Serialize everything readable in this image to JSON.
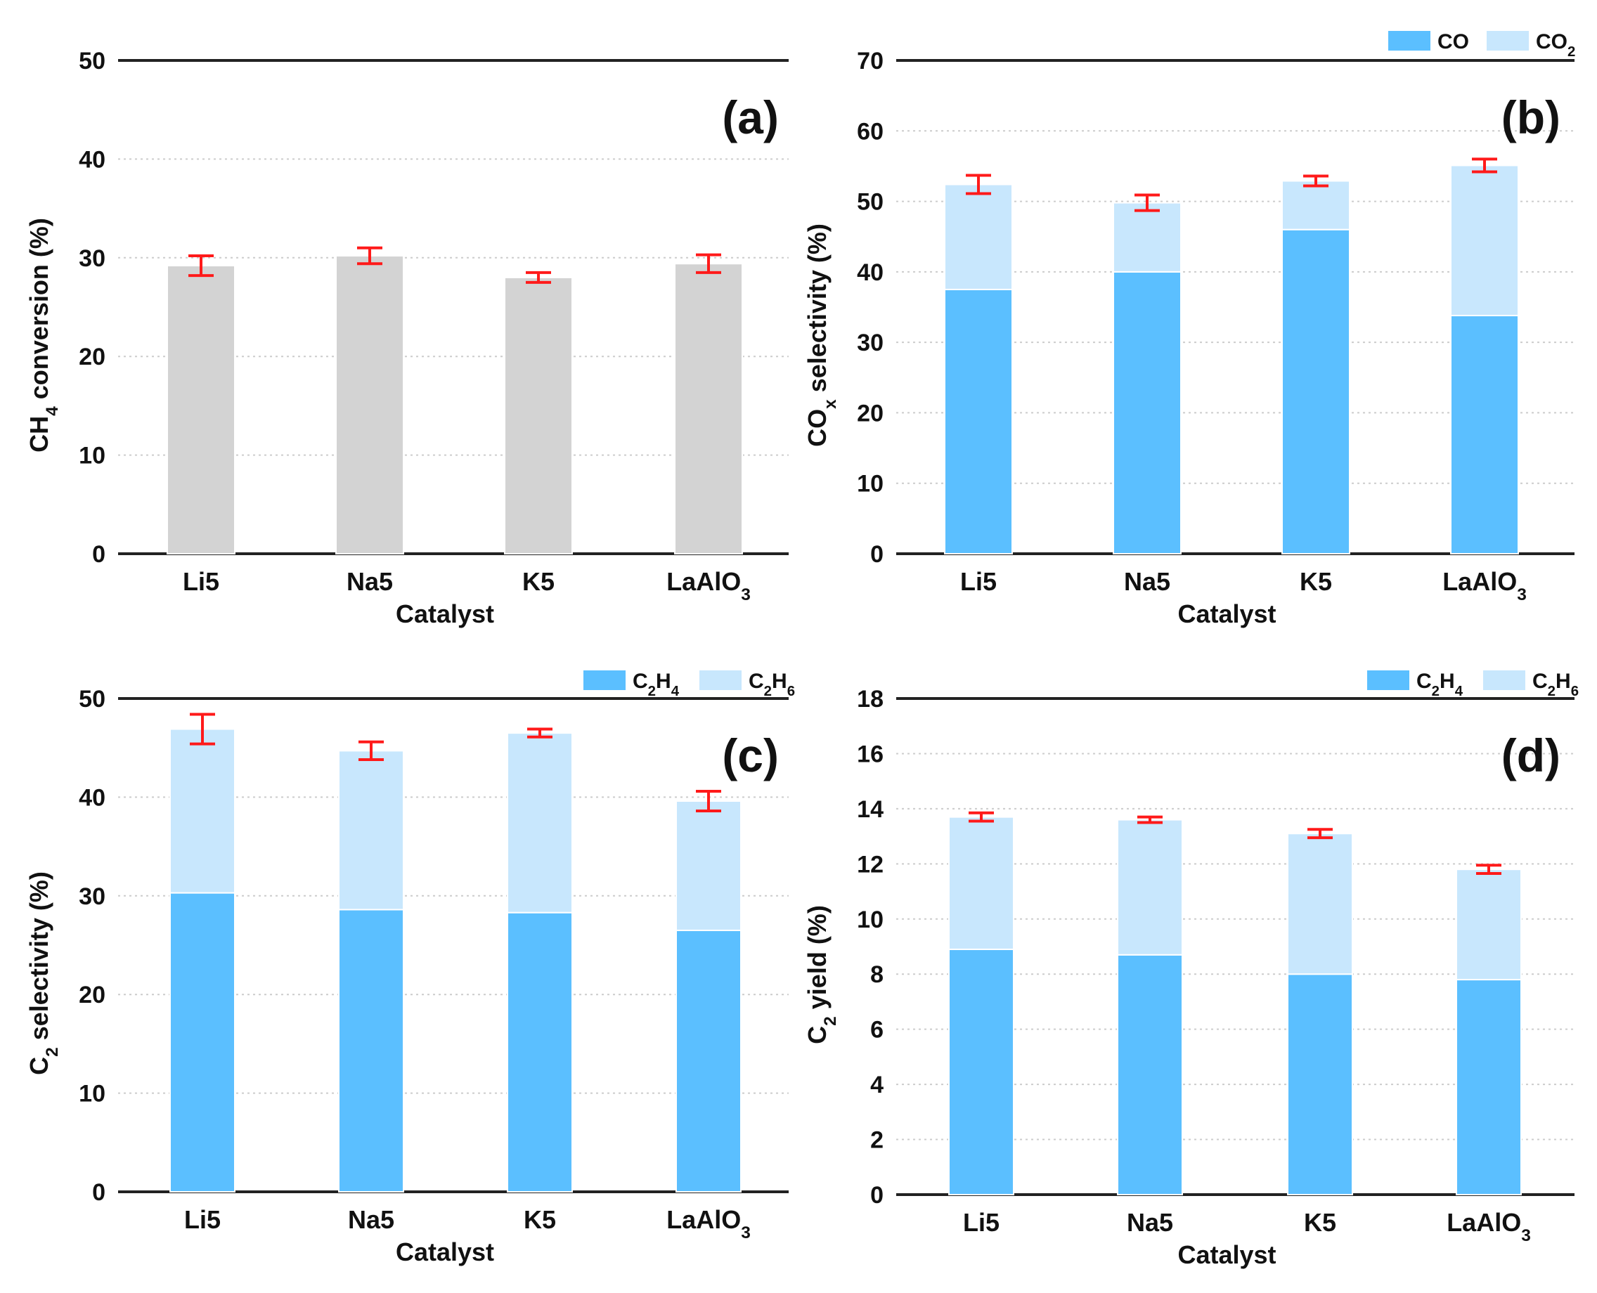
{
  "colors": {
    "primary": "#5bbfff",
    "secondary": "#c8e7fd",
    "gray": "#d3d3d3",
    "error": "#ff1a1a",
    "axis": "#222222",
    "grid": "#cccccc"
  },
  "chart_data": [
    {
      "id": "a",
      "type": "bar",
      "panel_label": "(a)",
      "categories": [
        "Li5",
        "Na5",
        "K5",
        "LaAlO3"
      ],
      "category_labels": [
        {
          "base": "Li5",
          "sub": ""
        },
        {
          "base": "Na5",
          "sub": ""
        },
        {
          "base": "K5",
          "sub": ""
        },
        {
          "base": "LaAlO",
          "sub": "3"
        }
      ],
      "xlabel": "Catalyst",
      "ylabel": {
        "base": "CH",
        "sub": "4",
        "rest": " conversion (%)"
      },
      "ylim": [
        0,
        50
      ],
      "yticks": [
        0,
        10,
        20,
        30,
        40,
        50
      ],
      "legend": [],
      "series": [
        {
          "name": "CH4 conversion",
          "color": "gray",
          "values": [
            29.2,
            30.2,
            28.0,
            29.4
          ]
        }
      ],
      "errors": [
        1.0,
        0.8,
        0.5,
        0.9
      ]
    },
    {
      "id": "b",
      "type": "bar",
      "stacked": true,
      "panel_label": "(b)",
      "categories": [
        "Li5",
        "Na5",
        "K5",
        "LaAlO3"
      ],
      "category_labels": [
        {
          "base": "Li5",
          "sub": ""
        },
        {
          "base": "Na5",
          "sub": ""
        },
        {
          "base": "K5",
          "sub": ""
        },
        {
          "base": "LaAlO",
          "sub": "3"
        }
      ],
      "xlabel": "Catalyst",
      "ylabel": {
        "base": "CO",
        "sub": "x",
        "rest": " selectivity (%)"
      },
      "ylim": [
        0,
        70
      ],
      "yticks": [
        0,
        10,
        20,
        30,
        40,
        50,
        60,
        70
      ],
      "legend": [
        {
          "base": "CO",
          "sub": "",
          "color": "primary"
        },
        {
          "base": "CO",
          "sub": "2",
          "color": "secondary"
        }
      ],
      "series": [
        {
          "name": "CO",
          "color": "primary",
          "values": [
            37.5,
            40.0,
            46.0,
            33.8
          ]
        },
        {
          "name": "CO2",
          "color": "secondary",
          "values": [
            14.9,
            9.8,
            6.9,
            21.3
          ]
        }
      ],
      "errors": [
        1.3,
        1.1,
        0.7,
        0.9
      ]
    },
    {
      "id": "c",
      "type": "bar",
      "stacked": true,
      "panel_label": "(c)",
      "categories": [
        "Li5",
        "Na5",
        "K5",
        "LaAlO3"
      ],
      "category_labels": [
        {
          "base": "Li5",
          "sub": ""
        },
        {
          "base": "Na5",
          "sub": ""
        },
        {
          "base": "K5",
          "sub": ""
        },
        {
          "base": "LaAlO",
          "sub": "3"
        }
      ],
      "xlabel": "Catalyst",
      "ylabel": {
        "base": "C",
        "sub": "2",
        "rest": " selectivity (%)"
      },
      "ylim": [
        0,
        50
      ],
      "yticks": [
        0,
        10,
        20,
        30,
        40,
        50
      ],
      "legend": [
        {
          "base": "C",
          "sub": "2",
          "base2": "H",
          "sub2": "4",
          "color": "primary"
        },
        {
          "base": "C",
          "sub": "2",
          "base2": "H",
          "sub2": "6",
          "color": "secondary"
        }
      ],
      "series": [
        {
          "name": "C2H4",
          "color": "primary",
          "values": [
            30.3,
            28.6,
            28.3,
            26.5
          ]
        },
        {
          "name": "C2H6",
          "color": "secondary",
          "values": [
            16.6,
            16.1,
            18.2,
            13.1
          ]
        }
      ],
      "errors": [
        1.5,
        0.9,
        0.4,
        1.0
      ]
    },
    {
      "id": "d",
      "type": "bar",
      "stacked": true,
      "panel_label": "(d)",
      "categories": [
        "Li5",
        "Na5",
        "K5",
        "LaAlO3"
      ],
      "category_labels": [
        {
          "base": "Li5",
          "sub": ""
        },
        {
          "base": "Na5",
          "sub": ""
        },
        {
          "base": "K5",
          "sub": ""
        },
        {
          "base": "LaAlO",
          "sub": "3"
        }
      ],
      "xlabel": "Catalyst",
      "ylabel": {
        "base": "C",
        "sub": "2",
        "rest": " yield (%)"
      },
      "ylim": [
        0,
        18
      ],
      "yticks": [
        0,
        2,
        4,
        6,
        8,
        10,
        12,
        14,
        16,
        18
      ],
      "legend": [
        {
          "base": "C",
          "sub": "2",
          "base2": "H",
          "sub2": "4",
          "color": "primary"
        },
        {
          "base": "C",
          "sub": "2",
          "base2": "H",
          "sub2": "6",
          "color": "secondary"
        }
      ],
      "series": [
        {
          "name": "C2H4",
          "color": "primary",
          "values": [
            8.9,
            8.7,
            8.0,
            7.8
          ]
        },
        {
          "name": "C2H6",
          "color": "secondary",
          "values": [
            4.8,
            4.9,
            5.1,
            4.0
          ]
        }
      ],
      "errors": [
        0.15,
        0.1,
        0.15,
        0.15
      ]
    }
  ]
}
